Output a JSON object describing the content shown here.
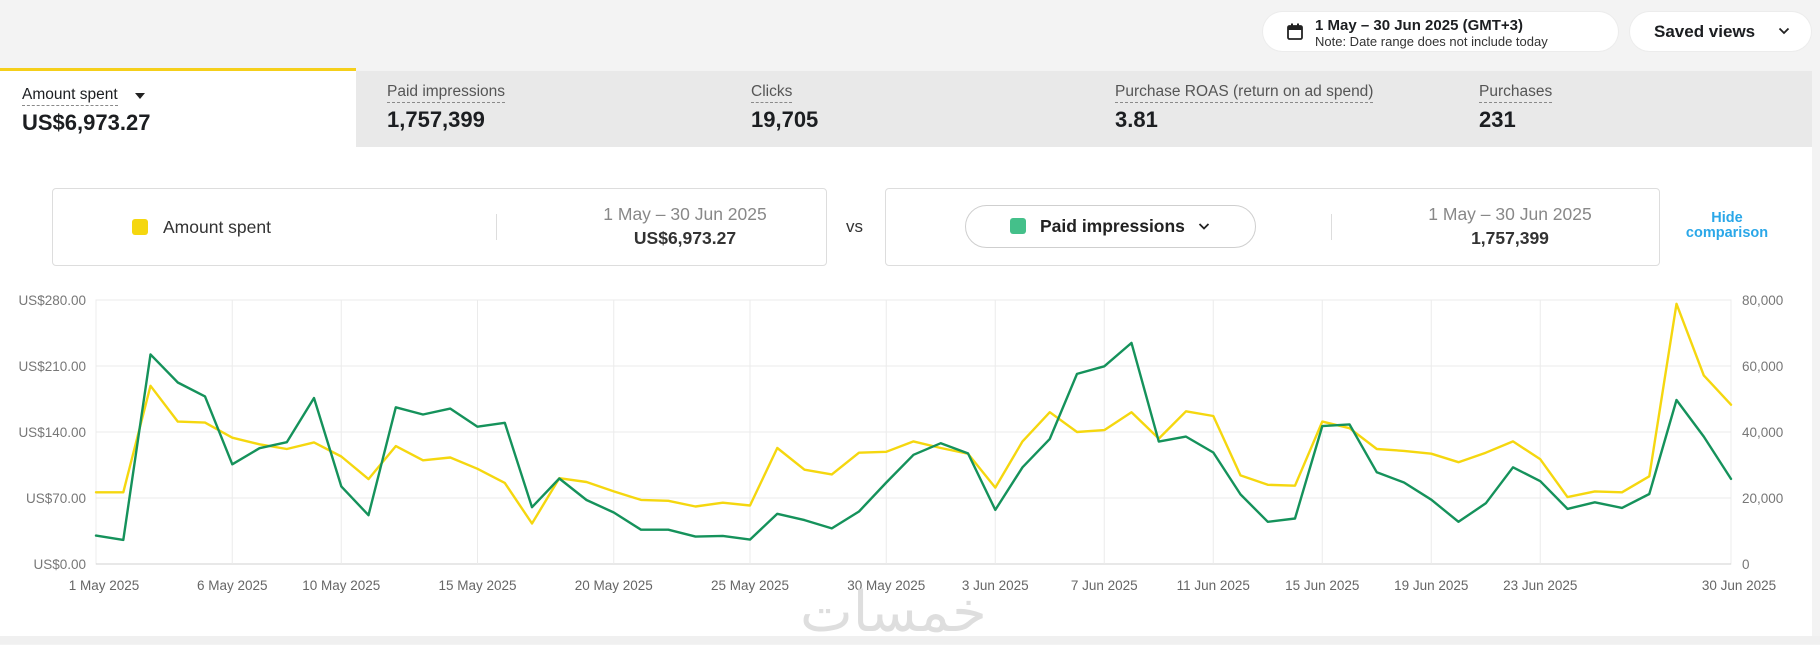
{
  "header": {
    "date_range": "1 May – 30 Jun 2025 (GMT+3)",
    "date_note": "Note: Date range does not include today",
    "saved_views": "Saved views"
  },
  "metrics": [
    {
      "label": "Amount spent",
      "value": "US$6,973.27",
      "active": true
    },
    {
      "label": "Paid impressions",
      "value": "1,757,399"
    },
    {
      "label": "Clicks",
      "value": "19,705"
    },
    {
      "label": "Purchase ROAS (return on ad spend)",
      "value": "3.81"
    },
    {
      "label": "Purchases",
      "value": "231"
    }
  ],
  "comparison": {
    "left": {
      "name": "Amount spent",
      "range": "1 May – 30 Jun 2025",
      "value": "US$6,973.27",
      "color": "#f5d70f"
    },
    "vs": "vs",
    "right": {
      "name": "Paid impressions",
      "range": "1 May – 30 Jun 2025",
      "value": "1,757,399",
      "color": "#44c08a"
    },
    "hide_label_1": "Hide",
    "hide_label_2": "comparison"
  },
  "watermark": "خمسات",
  "chart_data": {
    "type": "line",
    "title": "",
    "x": [
      "1 May 2025",
      "2 May",
      "3 May",
      "4 May",
      "5 May",
      "6 May",
      "7 May",
      "8 May",
      "9 May",
      "10 May",
      "11 May",
      "12 May",
      "13 May",
      "14 May",
      "15 May",
      "16 May",
      "17 May",
      "18 May",
      "19 May",
      "20 May",
      "21 May",
      "22 May",
      "23 May",
      "24 May",
      "25 May",
      "26 May",
      "27 May",
      "28 May",
      "29 May",
      "30 May",
      "31 May",
      "1 Jun",
      "2 Jun",
      "3 Jun",
      "4 Jun",
      "5 Jun",
      "6 Jun",
      "7 Jun",
      "8 Jun",
      "9 Jun",
      "10 Jun",
      "11 Jun",
      "12 Jun",
      "13 Jun",
      "14 Jun",
      "15 Jun",
      "16 Jun",
      "17 Jun",
      "18 Jun",
      "19 Jun",
      "20 Jun",
      "21 Jun",
      "22 Jun",
      "23 Jun",
      "24 Jun",
      "25 Jun",
      "26 Jun",
      "27 Jun",
      "28 Jun",
      "29 Jun",
      "30 Jun 2025"
    ],
    "x_tick_labels": [
      {
        "index": 0,
        "label": "1 May 2025"
      },
      {
        "index": 5,
        "label": "6 May 2025"
      },
      {
        "index": 9,
        "label": "10 May 2025"
      },
      {
        "index": 14,
        "label": "15 May 2025"
      },
      {
        "index": 19,
        "label": "20 May 2025"
      },
      {
        "index": 24,
        "label": "25 May 2025"
      },
      {
        "index": 29,
        "label": "30 May 2025"
      },
      {
        "index": 33,
        "label": "3 Jun 2025"
      },
      {
        "index": 37,
        "label": "7 Jun 2025"
      },
      {
        "index": 41,
        "label": "11 Jun 2025"
      },
      {
        "index": 45,
        "label": "15 Jun 2025"
      },
      {
        "index": 49,
        "label": "19 Jun 2025"
      },
      {
        "index": 53,
        "label": "23 Jun 2025"
      },
      {
        "index": 60,
        "label": "30 Jun 2025"
      }
    ],
    "y_left": {
      "ticks": [
        0,
        70,
        140,
        210,
        280
      ],
      "tick_labels": [
        "US$0.00",
        "US$70.00",
        "US$140.00",
        "US$210.00",
        "US$280.00"
      ],
      "range": [
        0,
        280
      ]
    },
    "y_right": {
      "ticks": [
        0,
        20000,
        40000,
        60000,
        80000
      ],
      "tick_labels": [
        "0",
        "20,000",
        "40,000",
        "60,000",
        "80,000"
      ],
      "range": [
        0,
        80000
      ]
    },
    "grid": true,
    "series": [
      {
        "name": "Amount spent",
        "axis": "left",
        "color": "#f5d70f",
        "values": [
          76,
          76,
          189,
          151,
          150,
          134,
          127,
          122,
          129,
          114,
          90,
          125,
          110,
          113,
          101,
          86,
          43,
          91,
          87,
          77,
          68,
          67,
          61,
          65,
          62,
          123,
          100,
          95,
          118,
          119,
          130,
          123,
          117,
          81,
          130,
          161,
          140,
          142,
          161,
          133,
          162,
          157,
          94,
          84,
          83,
          151,
          144,
          122,
          120,
          117,
          108,
          118,
          130,
          111,
          71,
          77,
          76,
          93,
          276,
          200,
          169
        ],
        "values_are_estimates": true
      },
      {
        "name": "Paid impressions",
        "axis": "right",
        "color": "#15925b",
        "values": [
          8600,
          7300,
          63500,
          55000,
          50800,
          30200,
          35100,
          36900,
          50300,
          23500,
          14800,
          47500,
          45300,
          47100,
          41600,
          42800,
          17200,
          25900,
          19400,
          15600,
          10400,
          10400,
          8300,
          8500,
          7400,
          15200,
          13300,
          10800,
          15900,
          24700,
          33100,
          36600,
          33500,
          16400,
          29300,
          37900,
          57600,
          59900,
          67000,
          37100,
          38600,
          33800,
          21100,
          12800,
          13800,
          41800,
          42300,
          27800,
          24700,
          19500,
          12800,
          18400,
          29300,
          25100,
          16700,
          18700,
          17000,
          21200,
          49700,
          38600,
          25800
        ],
        "values_are_estimates": true
      }
    ]
  }
}
